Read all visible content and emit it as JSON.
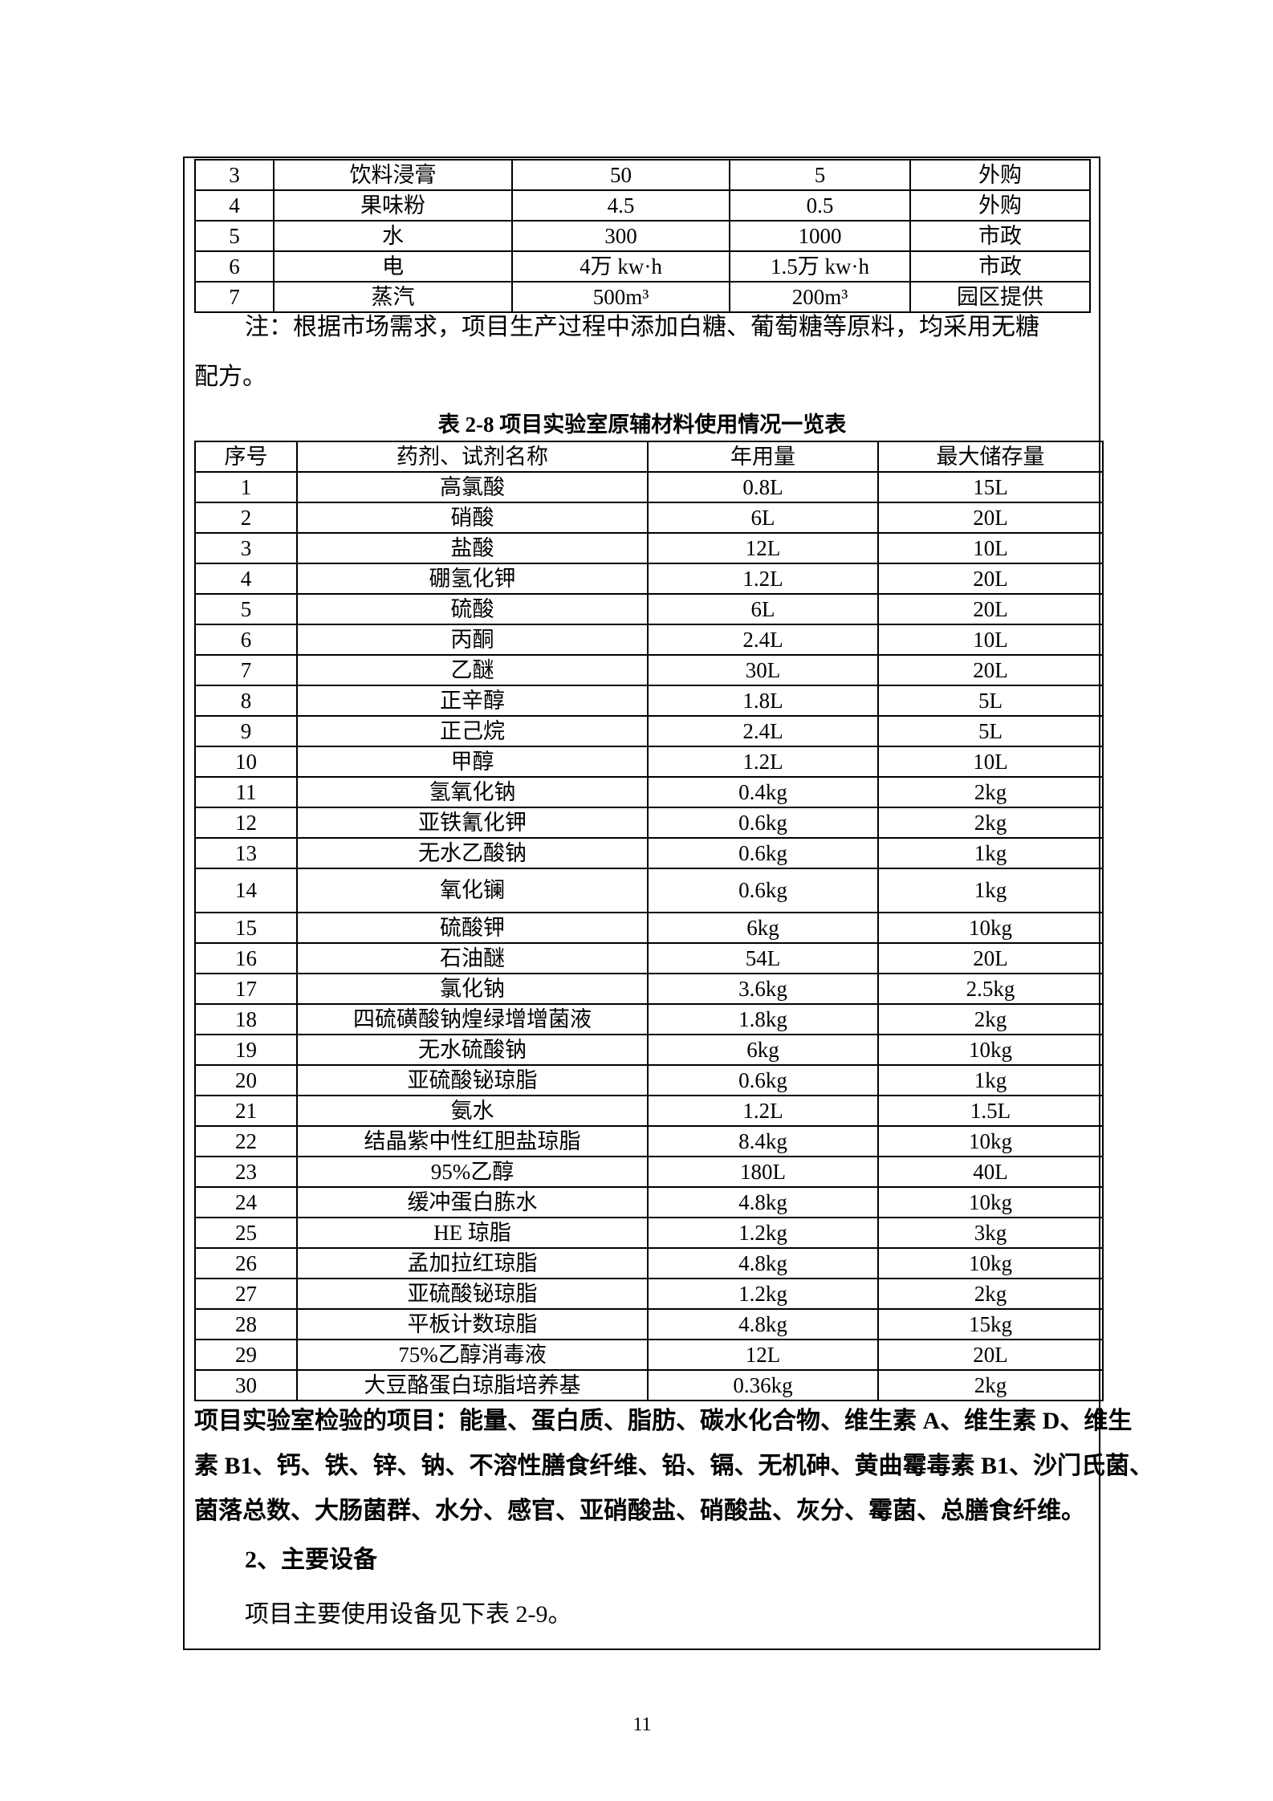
{
  "table_top": {
    "rows": [
      [
        "3",
        "饮料浸膏",
        "50",
        "5",
        "外购"
      ],
      [
        "4",
        "果味粉",
        "4.5",
        "0.5",
        "外购"
      ],
      [
        "5",
        "水",
        "300",
        "1000",
        "市政"
      ],
      [
        "6",
        "电",
        "4万 kw·h",
        "1.5万 kw·h",
        "市政"
      ],
      [
        "7",
        "蒸汽",
        "500m³",
        "200m³",
        "园区提供"
      ]
    ]
  },
  "note_line1": "注：根据市场需求，项目生产过程中添加白糖、葡萄糖等原料，均采用无糖",
  "note_line2": "配方。",
  "table2": {
    "caption": "表 2-8 项目实验室原辅材料使用情况一览表",
    "headers": [
      "序号",
      "药剂、试剂名称",
      "年用量",
      "最大储存量"
    ],
    "rows": [
      [
        "1",
        "高氯酸",
        "0.8L",
        "15L"
      ],
      [
        "2",
        "硝酸",
        "6L",
        "20L"
      ],
      [
        "3",
        "盐酸",
        "12L",
        "10L"
      ],
      [
        "4",
        "硼氢化钾",
        "1.2L",
        "20L"
      ],
      [
        "5",
        "硫酸",
        "6L",
        "20L"
      ],
      [
        "6",
        "丙酮",
        "2.4L",
        "10L"
      ],
      [
        "7",
        "乙醚",
        "30L",
        "20L"
      ],
      [
        "8",
        "正辛醇",
        "1.8L",
        "5L"
      ],
      [
        "9",
        "正己烷",
        "2.4L",
        "5L"
      ],
      [
        "10",
        "甲醇",
        "1.2L",
        "10L"
      ],
      [
        "11",
        "氢氧化钠",
        "0.4kg",
        "2kg"
      ],
      [
        "12",
        "亚铁氰化钾",
        "0.6kg",
        "2kg"
      ],
      [
        "13",
        "无水乙酸钠",
        "0.6kg",
        "1kg"
      ],
      [
        "14",
        "氧化镧",
        "0.6kg",
        "1kg"
      ],
      [
        "15",
        "硫酸钾",
        "6kg",
        "10kg"
      ],
      [
        "16",
        "石油醚",
        "54L",
        "20L"
      ],
      [
        "17",
        "氯化钠",
        "3.6kg",
        "2.5kg"
      ],
      [
        "18",
        "四硫磺酸钠煌绿增增菌液",
        "1.8kg",
        "2kg"
      ],
      [
        "19",
        "无水硫酸钠",
        "6kg",
        "10kg"
      ],
      [
        "20",
        "亚硫酸铋琼脂",
        "0.6kg",
        "1kg"
      ],
      [
        "21",
        "氨水",
        "1.2L",
        "1.5L"
      ],
      [
        "22",
        "结晶紫中性红胆盐琼脂",
        "8.4kg",
        "10kg"
      ],
      [
        "23",
        "95%乙醇",
        "180L",
        "40L"
      ],
      [
        "24",
        "缓冲蛋白胨水",
        "4.8kg",
        "10kg"
      ],
      [
        "25",
        "HE 琼脂",
        "1.2kg",
        "3kg"
      ],
      [
        "26",
        "孟加拉红琼脂",
        "4.8kg",
        "10kg"
      ],
      [
        "27",
        "亚硫酸铋琼脂",
        "1.2kg",
        "2kg"
      ],
      [
        "28",
        "平板计数琼脂",
        "4.8kg",
        "15kg"
      ],
      [
        "29",
        "75%乙醇消毒液",
        "12L",
        "20L"
      ],
      [
        "30",
        "大豆酪蛋白琼脂培养基",
        "0.36kg",
        "2kg"
      ]
    ]
  },
  "items_line1": "项目实验室检验的项目：能量、蛋白质、脂肪、碳水化合物、维生素 A、维生素 D、维生",
  "items_line2": "素 B1、钙、铁、锌、钠、不溶性膳食纤维、铅、镉、无机砷、黄曲霉毒素 B1、沙门氏菌、",
  "items_line3": "菌落总数、大肠菌群、水分、感官、亚硝酸盐、硝酸盐、灰分、霉菌、总膳食纤维。",
  "section_heading": "2、主要设备",
  "section_text": "项目主要使用设备见下表 2-9。",
  "page_number": "11"
}
